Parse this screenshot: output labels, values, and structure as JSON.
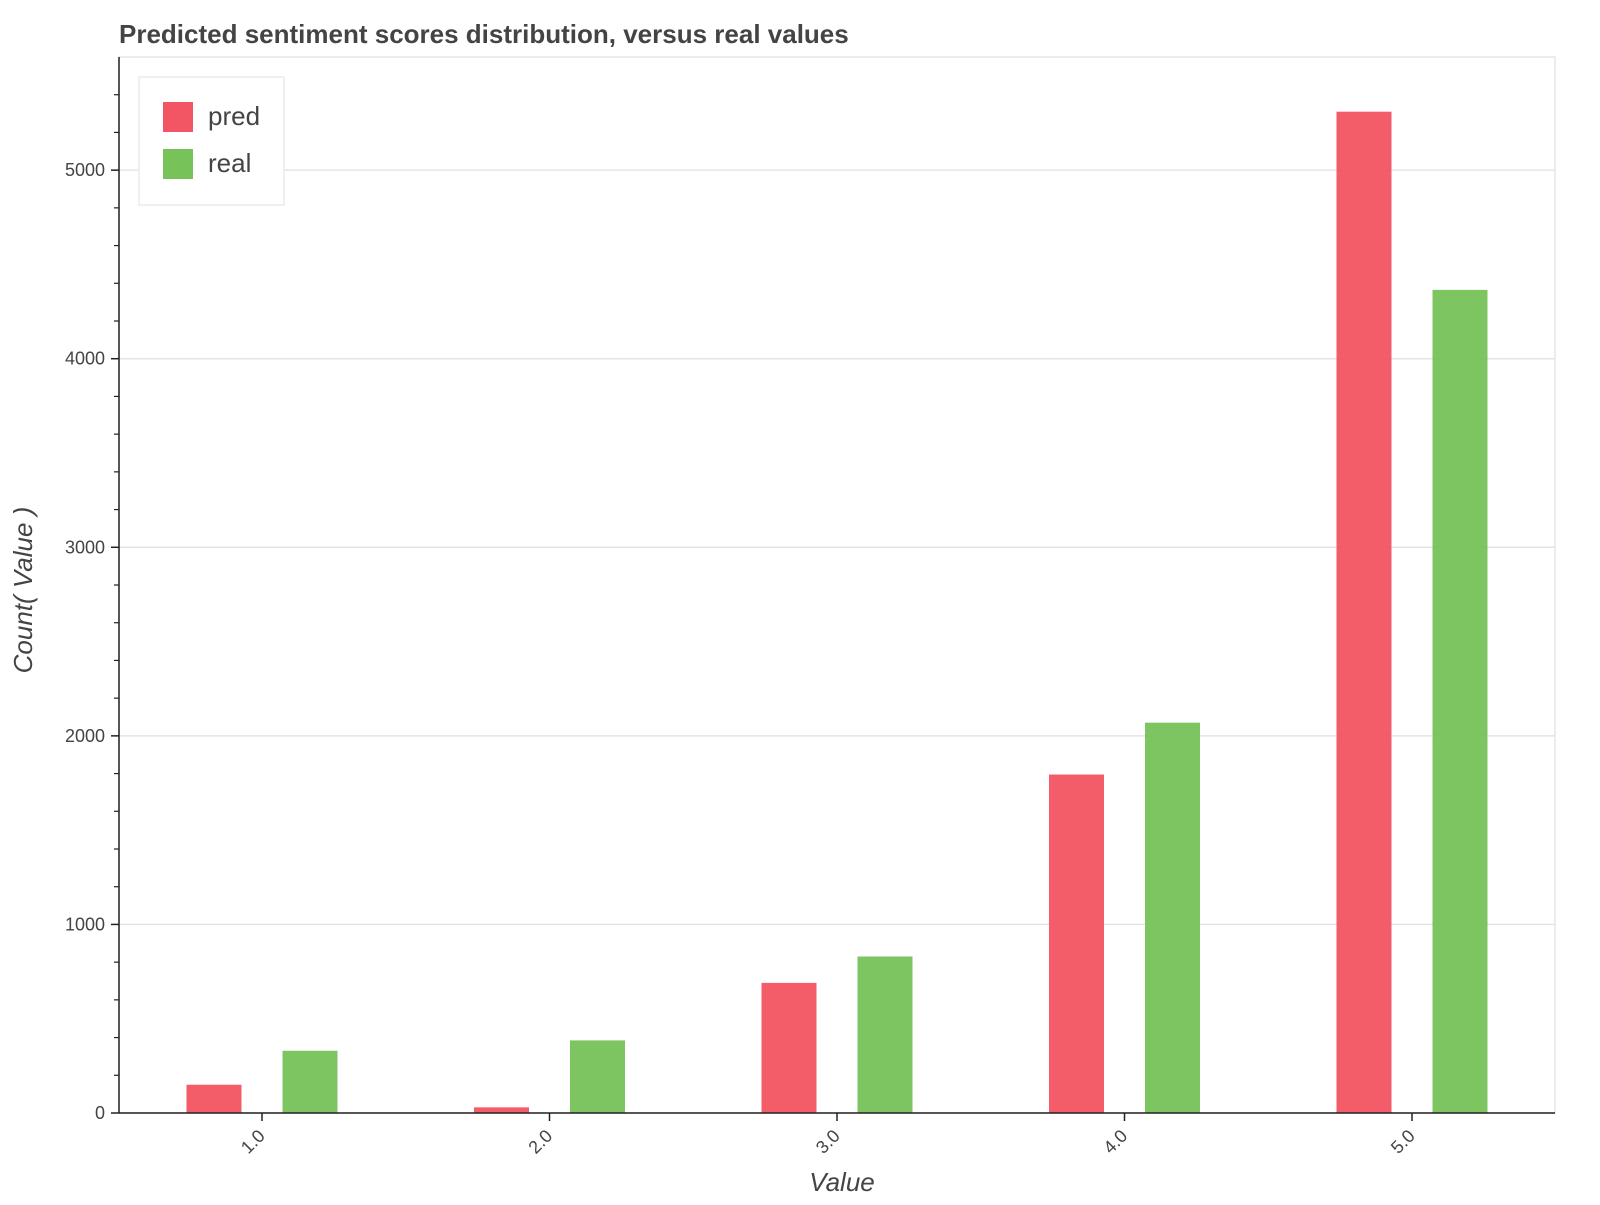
{
  "chart_data": {
    "type": "bar",
    "title": "Predicted sentiment scores distribution, versus real values",
    "xlabel": "Value",
    "ylabel": "Count( Value )",
    "categories": [
      "1.0",
      "2.0",
      "3.0",
      "4.0",
      "5.0"
    ],
    "series": [
      {
        "name": "pred",
        "color": "#f25563",
        "values": [
          150,
          30,
          690,
          1795,
          5310
        ]
      },
      {
        "name": "real",
        "color": "#77c35a",
        "values": [
          330,
          385,
          830,
          2070,
          4365
        ]
      }
    ],
    "ylim": [
      0,
      5600
    ],
    "yticks": [
      0,
      1000,
      2000,
      3000,
      4000,
      5000
    ],
    "grid": "horizontal",
    "legend_position": "top-left"
  }
}
